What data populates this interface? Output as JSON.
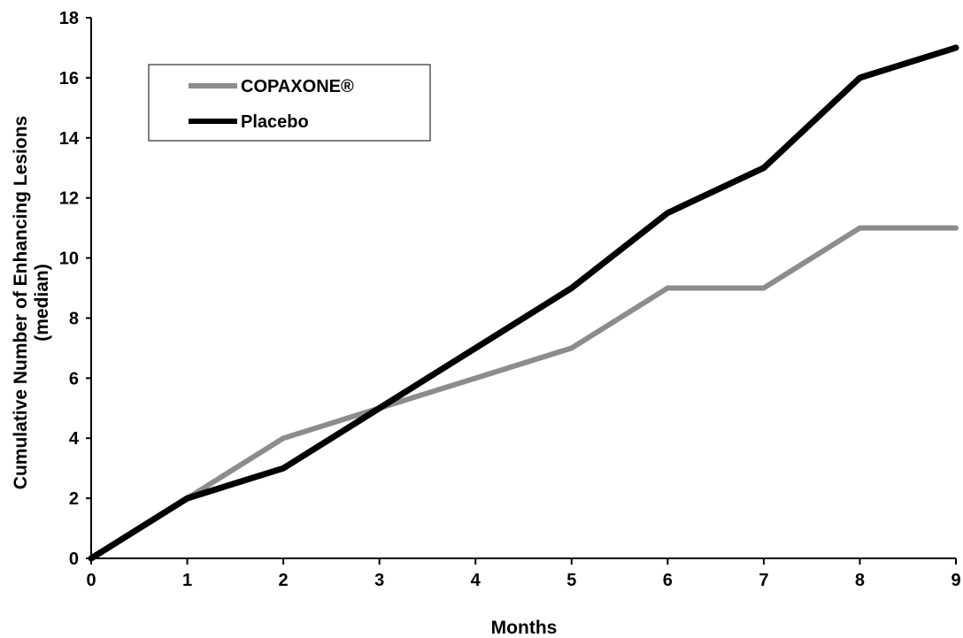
{
  "chart_data": {
    "type": "line",
    "title": "",
    "xlabel": "Months",
    "ylabel_line1": "Cumulative Number of Enhancing Lesions",
    "ylabel_line2": "(median)",
    "x": [
      0,
      1,
      2,
      3,
      4,
      5,
      6,
      7,
      8,
      9
    ],
    "xlim": [
      0,
      9
    ],
    "ylim": [
      0,
      18
    ],
    "x_ticks": [
      0,
      1,
      2,
      3,
      4,
      5,
      6,
      7,
      8,
      9
    ],
    "y_ticks": [
      0,
      2,
      4,
      6,
      8,
      10,
      12,
      14,
      16,
      18
    ],
    "grid": false,
    "legend_position": "top-left",
    "series": [
      {
        "name": "COPAXONE®",
        "color": "#8c8c8c",
        "values": [
          0,
          2,
          4,
          5,
          6,
          7,
          9,
          9,
          11,
          11
        ]
      },
      {
        "name": "Placebo",
        "color": "#000000",
        "values": [
          0,
          2,
          3,
          5,
          7,
          9,
          11.5,
          13,
          16,
          17
        ]
      }
    ]
  }
}
